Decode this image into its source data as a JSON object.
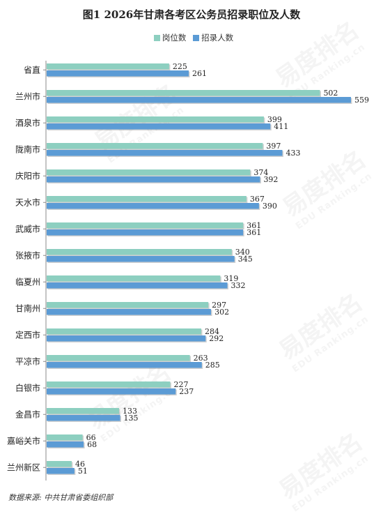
{
  "chart_data": {
    "type": "bar",
    "orientation": "horizontal",
    "title": "图1  2026年甘肃各考区公务员招录职位及人数",
    "categories": [
      "省直",
      "兰州市",
      "酒泉市",
      "陇南市",
      "庆阳市",
      "天水市",
      "武威市",
      "张掖市",
      "临夏州",
      "甘南州",
      "定西市",
      "平凉市",
      "白银市",
      "金昌市",
      "嘉峪关市",
      "兰州新区"
    ],
    "series": [
      {
        "name": "岗位数",
        "color": "#8dcfc0",
        "values": [
          225,
          502,
          399,
          397,
          374,
          367,
          361,
          340,
          319,
          297,
          284,
          263,
          227,
          133,
          66,
          46
        ]
      },
      {
        "name": "招录人数",
        "color": "#5b9bd5",
        "values": [
          261,
          559,
          411,
          433,
          392,
          390,
          361,
          345,
          332,
          302,
          292,
          285,
          237,
          135,
          68,
          51
        ]
      }
    ],
    "xlim": [
      0,
      559
    ],
    "grid": false,
    "legend_position": "top"
  },
  "watermark": {
    "text": "易度排名",
    "subtext": "EDU Ranking.cn"
  },
  "source": "数据来源:  中共甘肃省委组织部"
}
